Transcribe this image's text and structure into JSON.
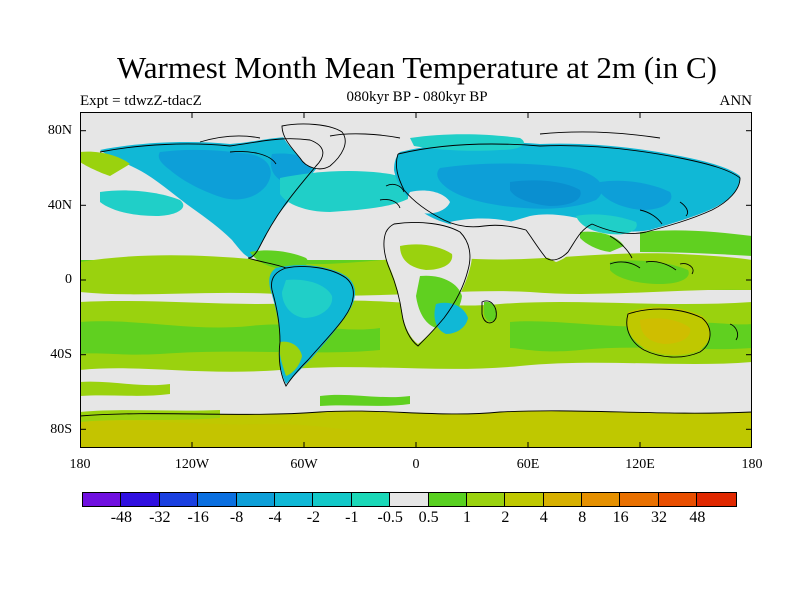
{
  "title": "Warmest Month Mean Temperature at 2m (in C)",
  "subtitle": "080kyr BP - 080kyr BP",
  "left_label": "Expt = tdwzZ-tdacZ",
  "right_label": "ANN",
  "map": {
    "lat_ticks": [
      "80N",
      "40N",
      "0",
      "40S",
      "80S"
    ],
    "lon_ticks": [
      "180",
      "120W",
      "60W",
      "0",
      "60E",
      "120E",
      "180"
    ],
    "lat_tick_values": [
      80,
      40,
      0,
      -40,
      -80
    ],
    "lon_tick_values": [
      -180,
      -120,
      -60,
      0,
      60,
      120,
      180
    ],
    "lat_range": [
      -90,
      90
    ],
    "lon_range": [
      -180,
      180
    ],
    "colors": {
      "neutral": "#e6e6e6",
      "cyan_light": "#20cfc8",
      "cyan": "#10b8d6",
      "blue_light": "#0d9fd8",
      "green": "#60d020",
      "yellow_green": "#9ad20e",
      "olive": "#bfc800",
      "ocean_outline": "#000000"
    }
  },
  "colorbar": {
    "colors": [
      "#7010e0",
      "#3010e0",
      "#1a40e0",
      "#0a6fe0",
      "#0d9fd8",
      "#10b8d6",
      "#12c8c8",
      "#1ad8b8",
      "#e6e6e6",
      "#58d020",
      "#9ad20e",
      "#bfc800",
      "#d7b000",
      "#e59000",
      "#e87000",
      "#e84e00",
      "#e02800"
    ],
    "labels": [
      "-48",
      "-32",
      "-16",
      "-8",
      "-4",
      "-2",
      "-1",
      "-0.5",
      "0.5",
      "1",
      "2",
      "4",
      "8",
      "16",
      "32",
      "48"
    ]
  }
}
